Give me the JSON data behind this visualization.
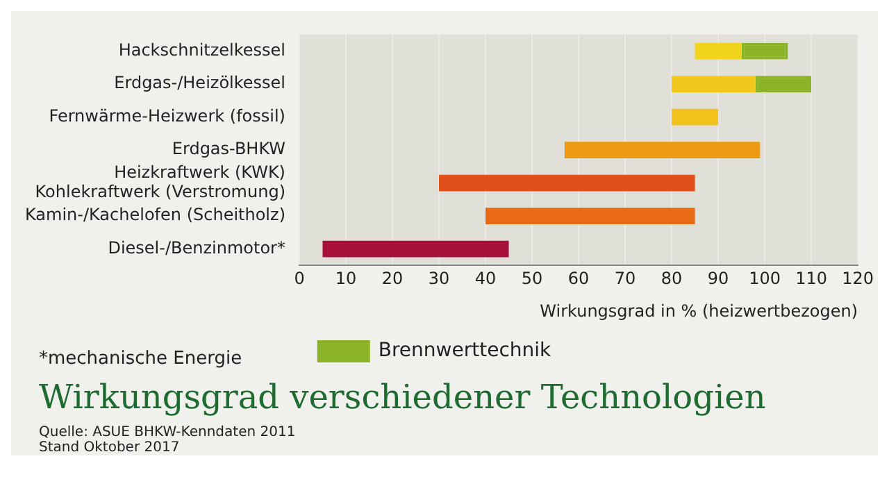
{
  "chart_data": {
    "type": "bar",
    "orientation": "horizontal",
    "stacked": false,
    "title": "Wirkungsgrad verschiedener Technologien",
    "xlabel": "Wirkungsgrad in % (heizwertbezogen)",
    "categories": [
      "Hackschnitzelkessel",
      "Erdgas-/Heizölkessel",
      "Fernwärme-Heizwerk (fossil)",
      "Erdgas-BHKW",
      "Heizkraftwerk (KWK)\nKohlekraftwerk (Verstromung)",
      "Kamin-/Kachelofen (Scheitholz)",
      "Diesel-/Benzinmotor*"
    ],
    "series": [
      {
        "colors": [
          "#f2d41c",
          "#f2c81c",
          "#f2c31c",
          "#ec9a12",
          "#e0501a",
          "#e86a14",
          "#a8103c"
        ],
        "base": [
          85,
          80,
          80,
          57,
          30,
          40,
          5
        ],
        "values": [
          10,
          18,
          10,
          42,
          55,
          45,
          40
        ]
      },
      {
        "name": "Brennwerttechnik",
        "color": "#8ab32a",
        "line_style": "dashed",
        "base": [
          95,
          98,
          null,
          null,
          null,
          null,
          null
        ],
        "values": [
          10,
          12,
          null,
          null,
          null,
          null,
          null
        ]
      }
    ],
    "xlim": [
      0,
      120
    ],
    "xticks": [
      0,
      10,
      20,
      30,
      40,
      50,
      60,
      70,
      80,
      90,
      100,
      110,
      120
    ],
    "grid": "x",
    "legend": "bottom",
    "annotations": [
      "*mechanische Energie",
      "Quelle: ASUE BHKW-Kenndaten 2011",
      "Stand Oktober 2017"
    ]
  }
}
